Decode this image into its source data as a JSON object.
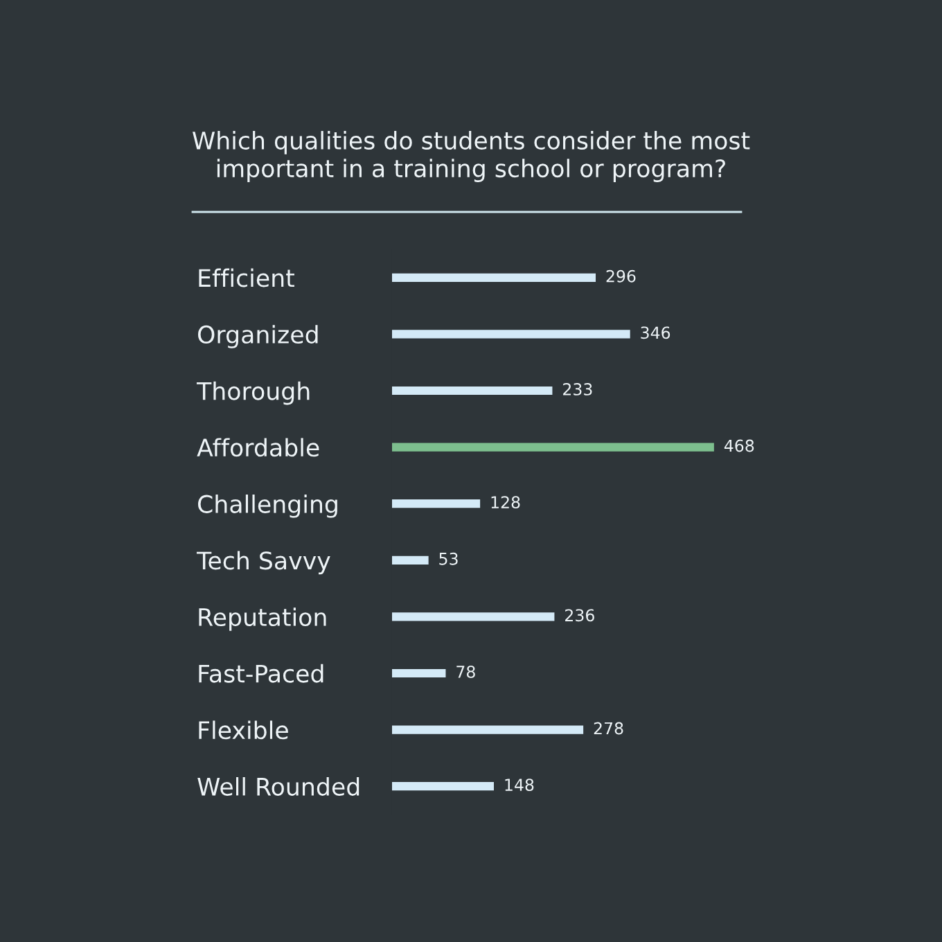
{
  "chart_data": {
    "type": "bar",
    "orientation": "horizontal",
    "title": "Which qualities do students consider the most\nimportant in a training school or program?",
    "categories": [
      "Efficient",
      "Organized",
      "Thorough",
      "Affordable",
      "Challenging",
      "Tech Savvy",
      "Reputation",
      "Fast-Paced",
      "Flexible",
      "Well Rounded"
    ],
    "values": [
      296,
      346,
      233,
      468,
      128,
      53,
      236,
      78,
      278,
      148
    ],
    "colors": [
      "#d4eaf7",
      "#d4eaf7",
      "#d4eaf7",
      "#7dbf8e",
      "#d4eaf7",
      "#d4eaf7",
      "#d4eaf7",
      "#d4eaf7",
      "#d4eaf7",
      "#d4eaf7"
    ],
    "data_labels": true,
    "grid": false,
    "legend": false
  }
}
